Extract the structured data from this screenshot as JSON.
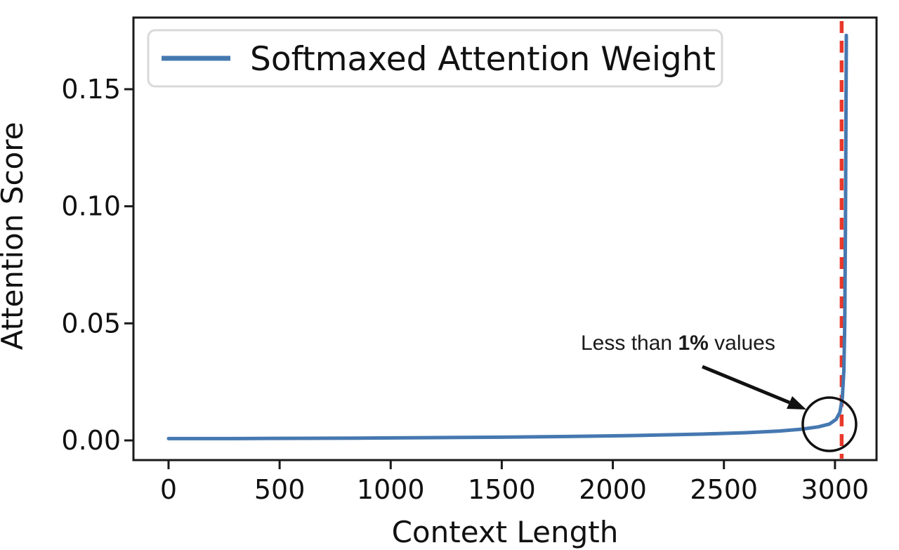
{
  "chart_data": {
    "type": "line",
    "title": "",
    "xlabel": "Context Length",
    "ylabel": "Attention Score",
    "grid": false,
    "legend_position": "upper left",
    "legend": [
      {
        "label": "Softmaxed Attention Weight",
        "color": "#4678b0"
      }
    ],
    "x_ticks": [
      0,
      500,
      1000,
      1500,
      2000,
      2500,
      3000
    ],
    "y_ticks": [
      {
        "value": 0.0,
        "label": "0.00"
      },
      {
        "value": 0.05,
        "label": "0.05"
      },
      {
        "value": 0.1,
        "label": "0.10"
      },
      {
        "value": 0.15,
        "label": "0.15"
      }
    ],
    "xlim": [
      -158,
      3187
    ],
    "ylim": [
      -0.0084,
      0.1806
    ],
    "series": [
      {
        "name": "Softmaxed Attention Weight",
        "color": "#4678b0",
        "points": [
          [
            0,
            0.0008
          ],
          [
            300,
            0.0008
          ],
          [
            600,
            0.0009
          ],
          [
            900,
            0.001
          ],
          [
            1200,
            0.0012
          ],
          [
            1500,
            0.0014
          ],
          [
            1800,
            0.0017
          ],
          [
            2100,
            0.0021
          ],
          [
            2400,
            0.0027
          ],
          [
            2600,
            0.0033
          ],
          [
            2750,
            0.004
          ],
          [
            2850,
            0.0048
          ],
          [
            2925,
            0.0058
          ],
          [
            2975,
            0.007
          ],
          [
            3005,
            0.009
          ],
          [
            3022,
            0.012
          ],
          [
            3033,
            0.018
          ],
          [
            3040,
            0.03
          ],
          [
            3044,
            0.05
          ],
          [
            3047,
            0.09
          ],
          [
            3049,
            0.13
          ],
          [
            3051,
            0.173
          ]
        ]
      }
    ],
    "vline": {
      "x": 3030,
      "color": "#e8392b",
      "style": "dashed"
    },
    "annotation": {
      "prefix": "Less than ",
      "bold": "1%",
      "suffix": " values",
      "full_text": "Less than 1% values",
      "target_x": 2975,
      "target_y": 0.0069
    }
  },
  "colors": {
    "series_blue": "#4678b0",
    "vline_red": "#e8392b",
    "spine_black": "#1a1a1a",
    "legend_border": "#d9d9d9",
    "background": "#ffffff"
  }
}
